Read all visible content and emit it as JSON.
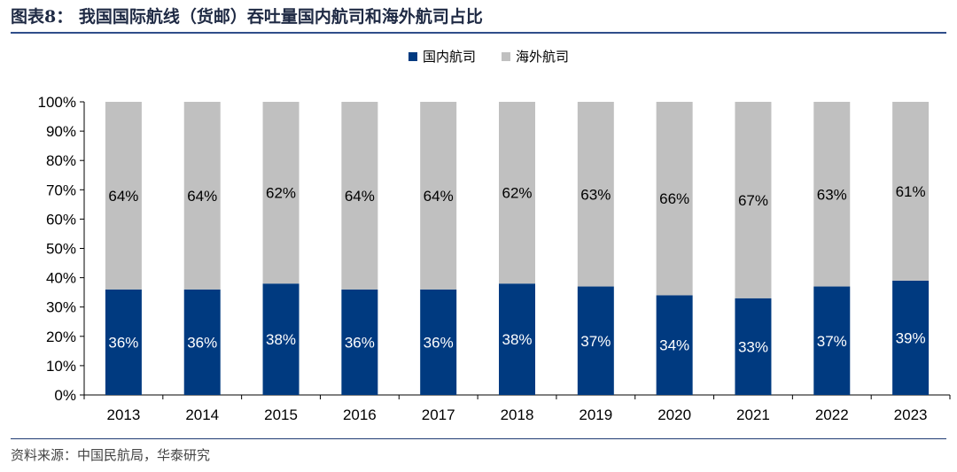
{
  "title": "图表8： 我国国际航线（货邮）吞吐量国内航司和海外航司占比",
  "source": "资料来源：中国民航局，华泰研究",
  "colors": {
    "domestic": "#003a80",
    "foreign": "#c0c0c0",
    "accent": "#2f4e8a"
  },
  "chart_data": {
    "type": "bar",
    "stacked": true,
    "percent": true,
    "categories": [
      "2013",
      "2014",
      "2015",
      "2016",
      "2017",
      "2018",
      "2019",
      "2020",
      "2021",
      "2022",
      "2023"
    ],
    "series": [
      {
        "name": "国内航司",
        "values": [
          36,
          36,
          38,
          36,
          36,
          38,
          37,
          34,
          33,
          37,
          39
        ],
        "labels": [
          "36%",
          "36%",
          "38%",
          "36%",
          "36%",
          "38%",
          "37%",
          "34%",
          "33%",
          "37%",
          "39%"
        ]
      },
      {
        "name": "海外航司",
        "values": [
          64,
          64,
          62,
          64,
          64,
          62,
          63,
          66,
          67,
          63,
          61
        ],
        "labels": [
          "64%",
          "64%",
          "62%",
          "64%",
          "64%",
          "62%",
          "63%",
          "66%",
          "67%",
          "63%",
          "61%"
        ]
      }
    ],
    "ylim": [
      0,
      100
    ],
    "yticks": [
      "0%",
      "10%",
      "20%",
      "30%",
      "40%",
      "50%",
      "60%",
      "70%",
      "80%",
      "90%",
      "100%"
    ],
    "legend": "top-center",
    "grid": false
  }
}
